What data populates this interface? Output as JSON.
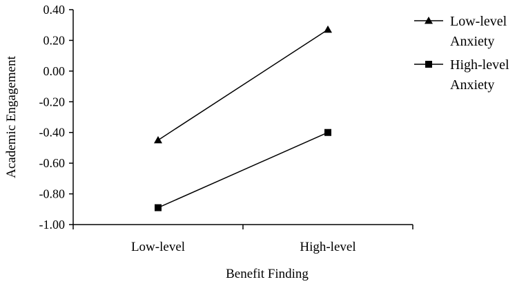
{
  "chart_data": {
    "type": "line",
    "xlabel": "Benefit Finding",
    "ylabel": "Academic Engagement",
    "categories": [
      "Low-level",
      "High-level"
    ],
    "ylim": [
      -1.0,
      0.4
    ],
    "yticks": [
      "0.40",
      "0.20",
      "0.00",
      "-0.20",
      "-0.40",
      "-0.60",
      "-0.80",
      "-1.00"
    ],
    "ytick_values": [
      0.4,
      0.2,
      0.0,
      -0.2,
      -0.4,
      -0.6,
      -0.8,
      -1.0
    ],
    "grid": false,
    "legend_position": "right",
    "series": [
      {
        "name": "Low-level Anxiety",
        "legend_lines": [
          "Low-level",
          "Anxiety"
        ],
        "marker": "triangle",
        "values": [
          -0.45,
          0.27
        ]
      },
      {
        "name": "High-level Anxiety",
        "legend_lines": [
          "High-level",
          "Anxiety"
        ],
        "marker": "square",
        "values": [
          -0.89,
          -0.4
        ]
      }
    ],
    "colors": {
      "line": "#000000",
      "background": "#ffffff"
    }
  }
}
